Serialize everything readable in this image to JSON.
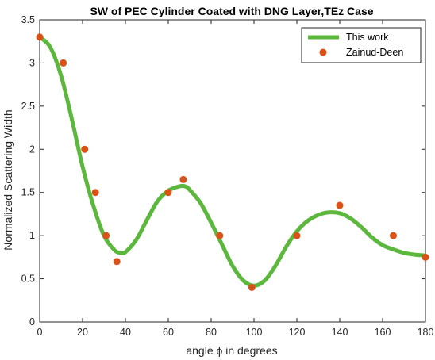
{
  "chart_data": {
    "type": "line",
    "title": "SW of PEC Cylinder Coated with DNG Layer,TEz Case",
    "xlabel": "angle ϕ in degrees",
    "ylabel": "Normalized Scattering Width",
    "xlim": [
      0,
      180
    ],
    "ylim": [
      0,
      3.5
    ],
    "xticks": [
      "0",
      "20",
      "40",
      "60",
      "80",
      "100",
      "120",
      "140",
      "160",
      "180"
    ],
    "yticks": [
      "0",
      "0.5",
      "1",
      "1.5",
      "2",
      "2.5",
      "3",
      "3.5"
    ],
    "grid": false,
    "legend_position": "top-right",
    "series": [
      {
        "name": "This work",
        "style": "line",
        "color": "#5cb83d",
        "x": [
          0,
          5,
          10,
          15,
          20,
          25,
          30,
          35,
          38,
          40,
          45,
          50,
          55,
          60,
          65,
          68,
          70,
          75,
          80,
          85,
          90,
          95,
          100,
          105,
          110,
          115,
          120,
          125,
          130,
          135,
          140,
          145,
          150,
          155,
          160,
          165,
          170,
          175,
          180
        ],
        "y": [
          3.3,
          3.18,
          2.85,
          2.35,
          1.8,
          1.35,
          1.0,
          0.83,
          0.8,
          0.81,
          0.95,
          1.18,
          1.4,
          1.52,
          1.57,
          1.57,
          1.53,
          1.38,
          1.15,
          0.9,
          0.65,
          0.48,
          0.42,
          0.48,
          0.65,
          0.87,
          1.05,
          1.17,
          1.24,
          1.27,
          1.26,
          1.2,
          1.1,
          0.98,
          0.89,
          0.84,
          0.8,
          0.78,
          0.77
        ]
      },
      {
        "name": "Zainud-Deen",
        "style": "markers",
        "color": "#d95319",
        "x": [
          0,
          11,
          21,
          26,
          31,
          36,
          60,
          67,
          84,
          99,
          120,
          140,
          165,
          180
        ],
        "y": [
          3.3,
          3.0,
          2.0,
          1.5,
          1.0,
          0.7,
          1.5,
          1.65,
          1.0,
          0.4,
          1.0,
          1.35,
          1.0,
          0.75
        ]
      }
    ]
  }
}
